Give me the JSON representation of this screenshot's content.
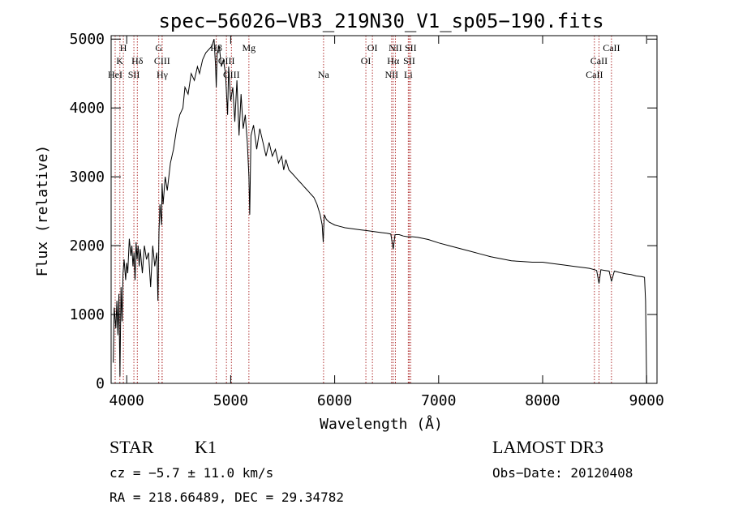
{
  "chart_data": {
    "type": "line",
    "title": "spec−56026−VB3_219N30_V1_sp05−190.fits",
    "xlabel": "Wavelength (Å)",
    "ylabel": "Flux (relative)",
    "xlim": [
      3850,
      9100
    ],
    "ylim": [
      0,
      5050
    ],
    "xticks": [
      4000,
      5000,
      6000,
      7000,
      8000,
      9000
    ],
    "yticks": [
      0,
      1000,
      2000,
      3000,
      4000,
      5000
    ],
    "series": [
      {
        "name": "spectrum",
        "x": [
          3870,
          3880,
          3895,
          3905,
          3915,
          3925,
          3935,
          3945,
          3955,
          3965,
          3975,
          3990,
          4000,
          4010,
          4025,
          4040,
          4050,
          4060,
          4070,
          4080,
          4090,
          4100,
          4110,
          4120,
          4130,
          4150,
          4170,
          4190,
          4210,
          4230,
          4250,
          4270,
          4290,
          4300,
          4310,
          4320,
          4335,
          4340,
          4350,
          4370,
          4390,
          4420,
          4450,
          4480,
          4510,
          4540,
          4560,
          4590,
          4620,
          4650,
          4680,
          4700,
          4730,
          4760,
          4790,
          4820,
          4840,
          4855,
          4861,
          4870,
          4890,
          4910,
          4930,
          4950,
          4960,
          4970,
          4980,
          5000,
          5020,
          5040,
          5060,
          5080,
          5100,
          5120,
          5140,
          5160,
          5175,
          5183,
          5195,
          5220,
          5250,
          5280,
          5310,
          5340,
          5370,
          5400,
          5430,
          5460,
          5490,
          5510,
          5530,
          5560,
          5590,
          5620,
          5650,
          5680,
          5710,
          5740,
          5770,
          5800,
          5830,
          5860,
          5880,
          5890,
          5900,
          5920,
          5950,
          6000,
          6050,
          6100,
          6150,
          6200,
          6250,
          6300,
          6350,
          6400,
          6450,
          6500,
          6540,
          6563,
          6580,
          6620,
          6660,
          6700,
          6750,
          6800,
          6900,
          7000,
          7100,
          7200,
          7300,
          7400,
          7500,
          7600,
          7700,
          7800,
          7900,
          8000,
          8100,
          8200,
          8300,
          8400,
          8450,
          8500,
          8520,
          8542,
          8560,
          8600,
          8640,
          8662,
          8690,
          8740,
          8800,
          8850,
          8900,
          8950,
          8980,
          8990,
          9000
        ],
        "values": [
          300,
          1100,
          800,
          1200,
          700,
          1300,
          100,
          1400,
          900,
          1600,
          1800,
          1500,
          1750,
          1600,
          2100,
          1850,
          2000,
          1700,
          1900,
          1500,
          2050,
          1800,
          2000,
          1700,
          1950,
          1600,
          2000,
          1800,
          1900,
          1400,
          2000,
          1700,
          1900,
          1200,
          2200,
          2600,
          2300,
          2900,
          2600,
          3000,
          2800,
          3200,
          3400,
          3700,
          3900,
          4000,
          4300,
          4200,
          4500,
          4400,
          4600,
          4500,
          4700,
          4800,
          4850,
          4900,
          5000,
          4600,
          4300,
          4800,
          4900,
          4600,
          4700,
          4500,
          4200,
          3900,
          4600,
          4100,
          4300,
          3800,
          4400,
          3600,
          4200,
          3700,
          3900,
          3500,
          3000,
          2450,
          3600,
          3750,
          3400,
          3700,
          3500,
          3300,
          3500,
          3300,
          3400,
          3200,
          3300,
          3100,
          3250,
          3100,
          3050,
          3000,
          2950,
          2900,
          2850,
          2800,
          2750,
          2700,
          2600,
          2450,
          2300,
          2050,
          2450,
          2380,
          2340,
          2300,
          2280,
          2260,
          2250,
          2240,
          2230,
          2220,
          2210,
          2200,
          2190,
          2180,
          2170,
          1950,
          2160,
          2160,
          2140,
          2130,
          2130,
          2120,
          2090,
          2040,
          2000,
          1960,
          1920,
          1880,
          1840,
          1810,
          1780,
          1770,
          1760,
          1760,
          1740,
          1720,
          1700,
          1680,
          1670,
          1650,
          1640,
          1450,
          1650,
          1640,
          1630,
          1480,
          1630,
          1610,
          1590,
          1580,
          1560,
          1550,
          1540,
          1200,
          0
        ]
      }
    ],
    "lines": [
      {
        "label": "H",
        "row": 0,
        "wavelength": 3968
      },
      {
        "label": "K",
        "row": 1,
        "wavelength": 3934
      },
      {
        "label": "HeI",
        "row": 2,
        "wavelength": 3889
      },
      {
        "label": "SII",
        "row": 2,
        "wavelength": 4069
      },
      {
        "label": "Hδ",
        "row": 1,
        "wavelength": 4102
      },
      {
        "label": "G",
        "row": 0,
        "wavelength": 4308
      },
      {
        "label": "CIII",
        "row": 1,
        "wavelength": 4340
      },
      {
        "label": "Hγ",
        "row": 2,
        "wavelength": 4341
      },
      {
        "label": "Hβ",
        "row": 0,
        "wavelength": 4861
      },
      {
        "label": "OIII",
        "row": 1,
        "wavelength": 4959
      },
      {
        "label": "OIII",
        "row": 2,
        "wavelength": 5007
      },
      {
        "label": "Mg",
        "row": 0,
        "wavelength": 5175
      },
      {
        "label": "Na",
        "row": 2,
        "wavelength": 5893
      },
      {
        "label": "OI",
        "row": 0,
        "wavelength": 6363
      },
      {
        "label": "OI",
        "row": 1,
        "wavelength": 6300
      },
      {
        "label": "NII",
        "row": 0,
        "wavelength": 6584
      },
      {
        "label": "Hα",
        "row": 1,
        "wavelength": 6563
      },
      {
        "label": "SII",
        "row": 0,
        "wavelength": 6731
      },
      {
        "label": "SII",
        "row": 1,
        "wavelength": 6717
      },
      {
        "label": "NII",
        "row": 2,
        "wavelength": 6548
      },
      {
        "label": "Li",
        "row": 2,
        "wavelength": 6708
      },
      {
        "label": "CaII",
        "row": 0,
        "wavelength": 8662
      },
      {
        "label": "CaII",
        "row": 1,
        "wavelength": 8542
      },
      {
        "label": "CaII",
        "row": 2,
        "wavelength": 8498
      }
    ]
  },
  "info": {
    "class_label": "STAR",
    "subclass": "K1",
    "cz": "cz = −5.7 ± 11.0 km/s",
    "coords": "RA = 218.66489, DEC =  29.34782",
    "survey": "LAMOST DR3",
    "obs_date": "Obs−Date: 20120408"
  },
  "colors": {
    "axis": "#000000",
    "spectrum": "#000000",
    "line_markers": "#b03030",
    "background": "#ffffff"
  }
}
